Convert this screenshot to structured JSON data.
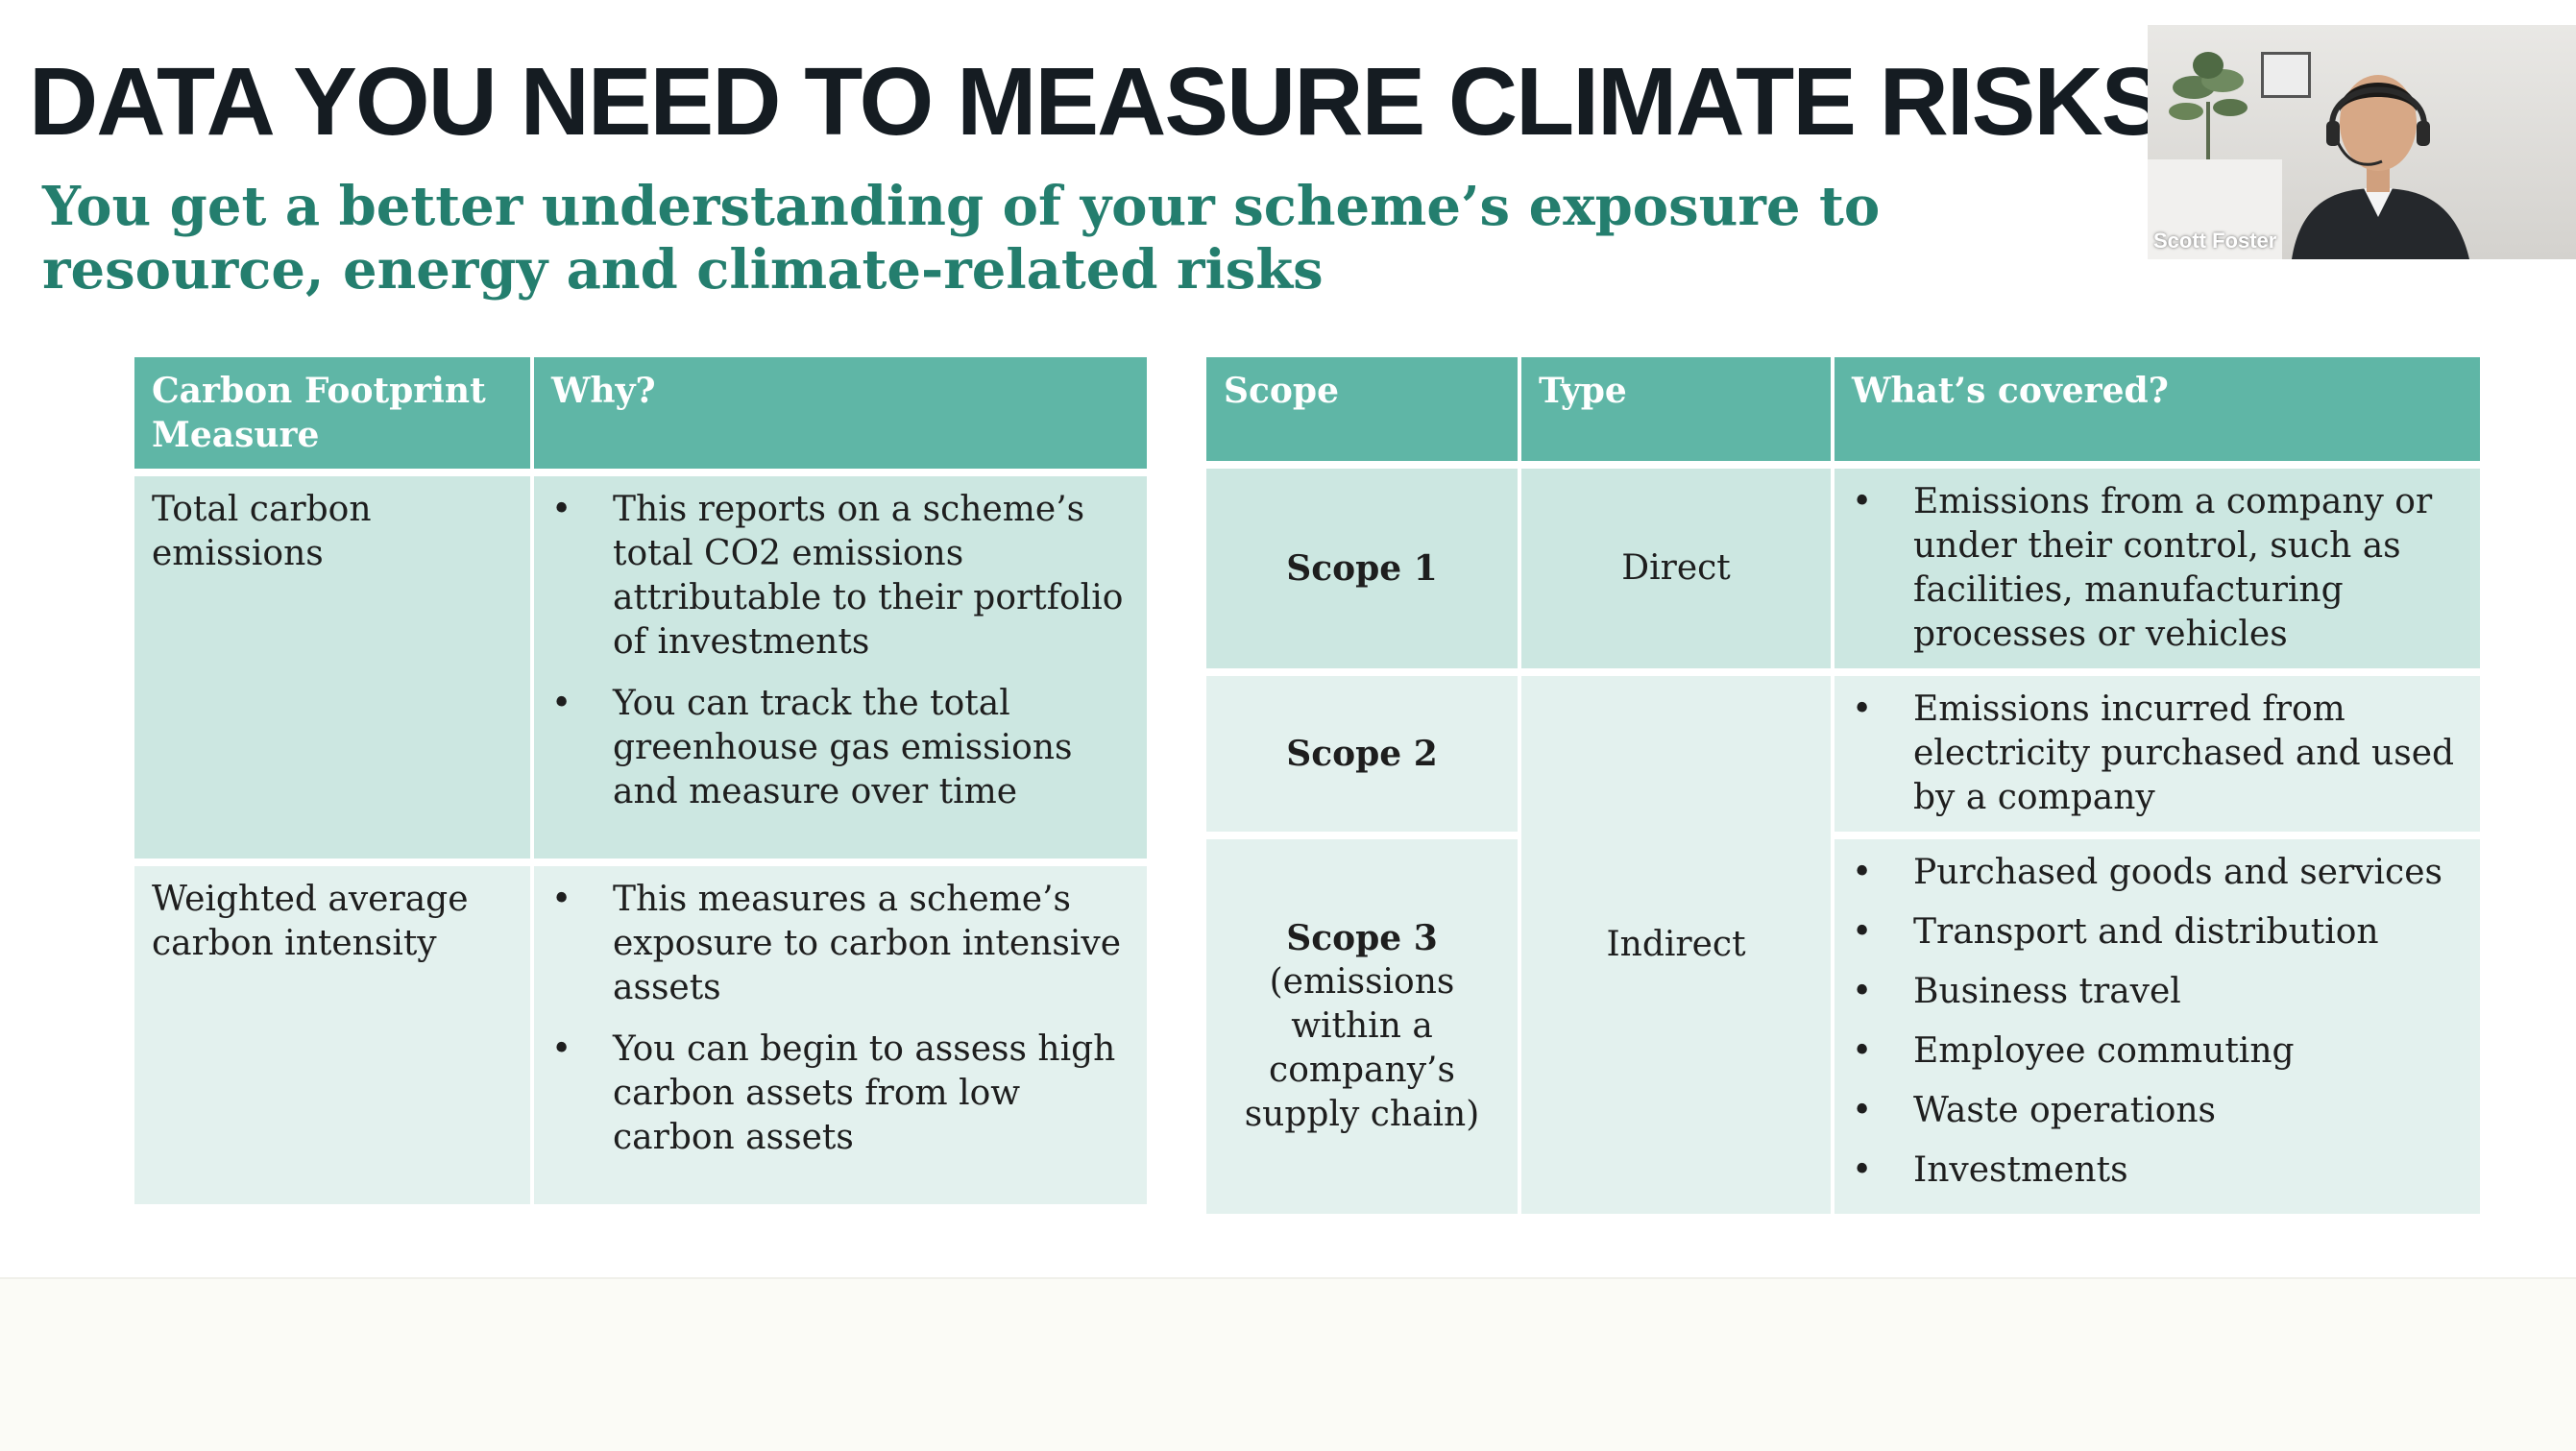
{
  "slide": {
    "title": "DATA YOU NEED TO MEASURE CLIMATE RISKS",
    "subtitle": "You get a better understanding of your scheme’s exposure to resource, energy and climate-related risks"
  },
  "table1": {
    "headers": [
      "Carbon Footprint Measure",
      "Why?"
    ],
    "rows": [
      {
        "measure": "Total carbon emissions",
        "why": [
          "This reports on a scheme’s total CO2 emissions attributable to their portfolio of investments",
          "You can track the total greenhouse gas emissions and measure over time"
        ]
      },
      {
        "measure": "Weighted average carbon intensity",
        "why": [
          "This measures a scheme’s exposure to carbon intensive assets",
          "You can begin to assess high carbon assets from low carbon assets"
        ]
      }
    ]
  },
  "table2": {
    "headers": [
      "Scope",
      "Type",
      "What’s covered?"
    ],
    "rows": [
      {
        "scope": "Scope 1",
        "scope_note": "",
        "type": "Direct",
        "covered": [
          "Emissions from a company or under their control, such as facilities, manufacturing processes or vehicles"
        ]
      },
      {
        "scope": "Scope 2",
        "scope_note": "",
        "type": "Indirect",
        "covered": [
          "Emissions incurred from electricity purchased and used by a company"
        ]
      },
      {
        "scope": "Scope 3",
        "scope_note": "(emissions within a company’s supply chain)",
        "covered": [
          "Purchased goods and services",
          "Transport and distribution",
          "Business travel",
          "Employee commuting",
          "Waste operations",
          "Investments"
        ]
      }
    ]
  },
  "video_tile": {
    "participant_name": "Scott Foster"
  },
  "colors": {
    "title": "#151c22",
    "subtitle": "#247e6e",
    "header_bg": "#5fb6a6",
    "row_dark": "#cce7e1",
    "row_light": "#e3f1ee"
  }
}
